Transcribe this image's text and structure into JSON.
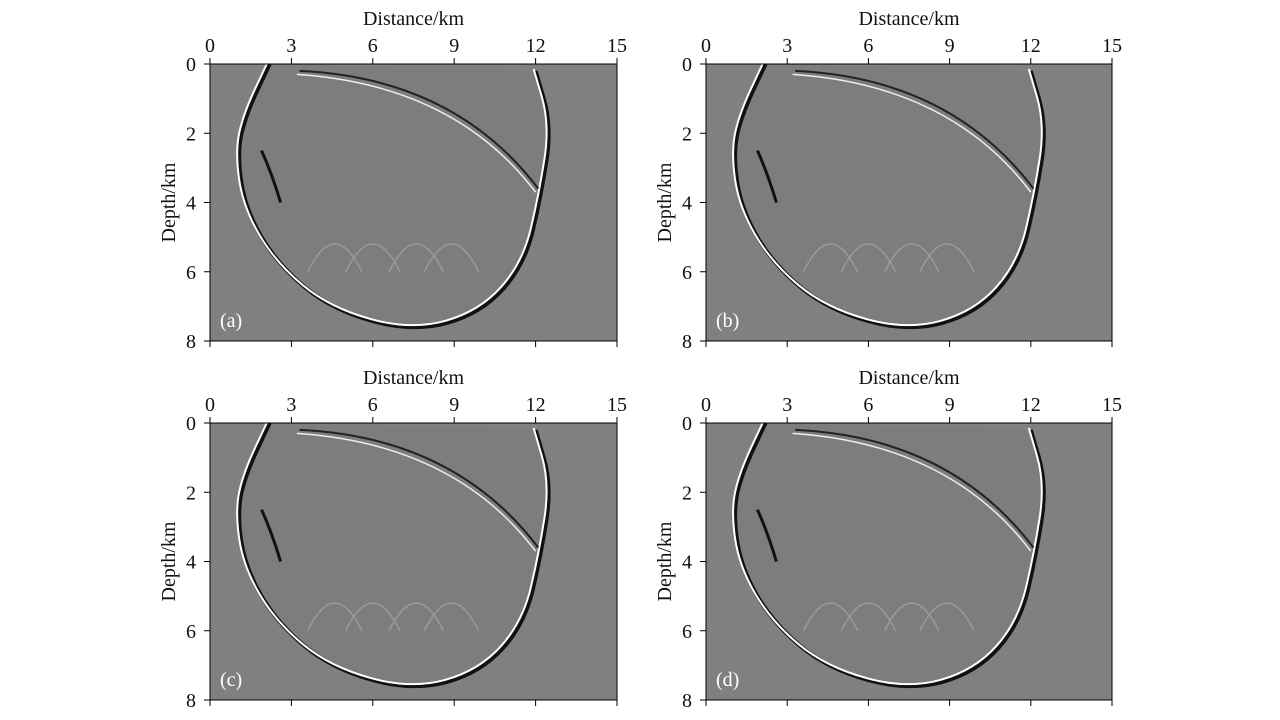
{
  "chart_data": [
    {
      "type": "image",
      "xlabel": "Distance/km",
      "ylabel": "Depth/km",
      "panel_label": "(a)",
      "xlim": [
        0,
        15
      ],
      "xticks": [
        0,
        3,
        6,
        9,
        12,
        15
      ],
      "ylim": [
        0,
        8
      ],
      "yticks": [
        0,
        2,
        4,
        6,
        8
      ],
      "y_inverted": true,
      "x_axis_position": "top"
    },
    {
      "type": "image",
      "xlabel": "Distance/km",
      "ylabel": "Depth/km",
      "panel_label": "(b)",
      "xlim": [
        0,
        15
      ],
      "xticks": [
        0,
        3,
        6,
        9,
        12,
        15
      ],
      "ylim": [
        0,
        8
      ],
      "yticks": [
        0,
        2,
        4,
        6,
        8
      ],
      "y_inverted": true,
      "x_axis_position": "top"
    },
    {
      "type": "image",
      "xlabel": "Distance/km",
      "ylabel": "Depth/km",
      "panel_label": "(c)",
      "xlim": [
        0,
        15
      ],
      "xticks": [
        0,
        3,
        6,
        9,
        12,
        15
      ],
      "ylim": [
        0,
        8
      ],
      "yticks": [
        0,
        2,
        4,
        6,
        8
      ],
      "y_inverted": true,
      "x_axis_position": "top"
    },
    {
      "type": "image",
      "xlabel": "Distance/km",
      "ylabel": "Depth/km",
      "panel_label": "(d)",
      "xlim": [
        0,
        15
      ],
      "xticks": [
        0,
        3,
        6,
        9,
        12,
        15
      ],
      "ylim": [
        0,
        8
      ],
      "yticks": [
        0,
        2,
        4,
        6,
        8
      ],
      "y_inverted": true,
      "x_axis_position": "top"
    }
  ]
}
